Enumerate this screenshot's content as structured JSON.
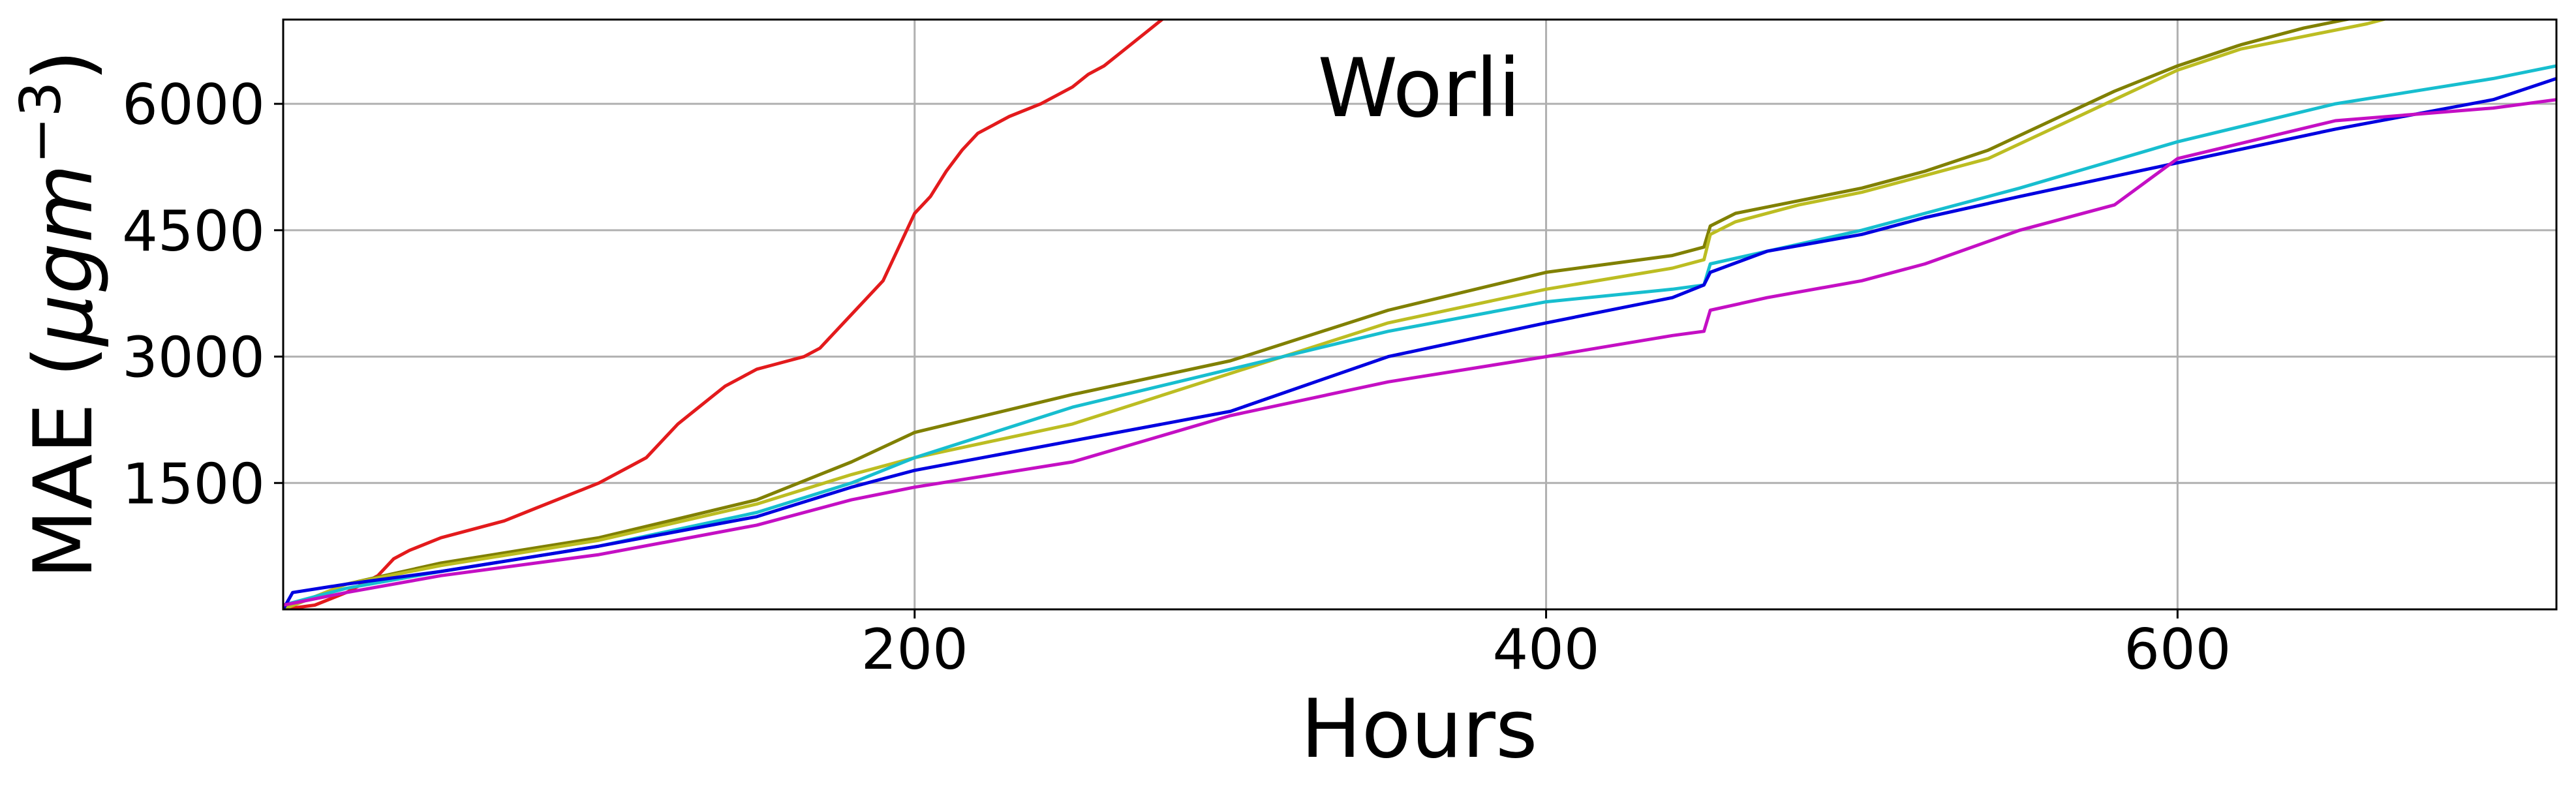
{
  "chart_data": {
    "type": "line",
    "title": "Worli",
    "xlabel": "Hours",
    "ylabel_main": "MAE (",
    "ylabel_mu": "μgm",
    "ylabel_exp": "−3",
    "ylabel_close": ")",
    "xlim": [
      0,
      720
    ],
    "ylim": [
      0,
      7000
    ],
    "xticks": [
      200,
      400,
      600
    ],
    "xtick_labels": [
      "200",
      "400",
      "600"
    ],
    "yticks": [
      1500,
      3000,
      4500,
      6000
    ],
    "ytick_labels": [
      "1500",
      "3000",
      "4500",
      "6000"
    ],
    "grid": true,
    "legend": "none",
    "series": [
      {
        "color": "#e31a1c",
        "x": [
          0,
          10,
          20,
          25,
          30,
          35,
          40,
          50,
          60,
          70,
          80,
          90,
          100,
          110,
          115,
          120,
          125,
          130,
          135,
          140,
          145,
          150,
          155,
          160,
          165,
          170,
          175,
          180,
          185,
          190,
          195,
          200,
          205,
          210,
          215,
          220,
          225,
          230,
          240,
          250,
          255,
          260,
          265,
          270,
          275,
          280
        ],
        "y": [
          0,
          50,
          200,
          300,
          400,
          600,
          700,
          850,
          950,
          1050,
          1200,
          1350,
          1500,
          1700,
          1800,
          2000,
          2200,
          2350,
          2500,
          2650,
          2750,
          2850,
          2900,
          2950,
          3000,
          3100,
          3300,
          3500,
          3700,
          3900,
          4300,
          4700,
          4900,
          5200,
          5450,
          5650,
          5750,
          5850,
          6000,
          6200,
          6350,
          6450,
          6600,
          6750,
          6900,
          7050
        ]
      },
      {
        "color": "#808000",
        "x": [
          0,
          20,
          50,
          100,
          150,
          180,
          200,
          250,
          300,
          350,
          400,
          440,
          450,
          452,
          460,
          480,
          500,
          520,
          540,
          560,
          580,
          600,
          620,
          640,
          660
        ],
        "y": [
          0,
          300,
          550,
          850,
          1300,
          1750,
          2100,
          2550,
          2950,
          3550,
          4000,
          4200,
          4300,
          4550,
          4700,
          4850,
          5000,
          5200,
          5450,
          5800,
          6150,
          6450,
          6700,
          6900,
          7050
        ]
      },
      {
        "color": "#bcbd22",
        "x": [
          0,
          20,
          50,
          100,
          150,
          180,
          200,
          250,
          300,
          350,
          400,
          440,
          450,
          452,
          460,
          480,
          500,
          520,
          540,
          560,
          580,
          600,
          620,
          640,
          660,
          670
        ],
        "y": [
          0,
          300,
          520,
          820,
          1250,
          1600,
          1800,
          2200,
          2800,
          3400,
          3800,
          4050,
          4150,
          4450,
          4600,
          4800,
          4950,
          5150,
          5350,
          5700,
          6050,
          6400,
          6650,
          6800,
          6950,
          7050
        ]
      },
      {
        "color": "#17becf",
        "x": [
          0,
          20,
          50,
          100,
          150,
          180,
          200,
          250,
          300,
          350,
          400,
          440,
          450,
          452,
          470,
          500,
          520,
          550,
          600,
          650,
          700,
          720
        ],
        "y": [
          50,
          250,
          450,
          750,
          1150,
          1500,
          1800,
          2400,
          2850,
          3300,
          3650,
          3800,
          3850,
          4100,
          4250,
          4500,
          4700,
          5000,
          5550,
          6000,
          6300,
          6450
        ]
      },
      {
        "color": "#0000e0",
        "x": [
          0,
          3,
          20,
          50,
          100,
          150,
          180,
          200,
          250,
          300,
          350,
          400,
          440,
          450,
          452,
          470,
          500,
          520,
          550,
          600,
          650,
          700,
          720
        ],
        "y": [
          0,
          200,
          300,
          450,
          750,
          1100,
          1450,
          1650,
          2000,
          2350,
          3000,
          3400,
          3700,
          3850,
          4000,
          4250,
          4450,
          4650,
          4900,
          5300,
          5700,
          6050,
          6300
        ]
      },
      {
        "color": "#c40fc4",
        "x": [
          0,
          20,
          50,
          100,
          150,
          180,
          200,
          250,
          300,
          350,
          400,
          440,
          450,
          452,
          470,
          500,
          520,
          550,
          580,
          600,
          650,
          700,
          720
        ],
        "y": [
          50,
          200,
          400,
          650,
          1000,
          1300,
          1450,
          1750,
          2300,
          2700,
          3000,
          3250,
          3300,
          3550,
          3700,
          3900,
          4100,
          4500,
          4800,
          5350,
          5800,
          5950,
          6050
        ]
      }
    ]
  }
}
